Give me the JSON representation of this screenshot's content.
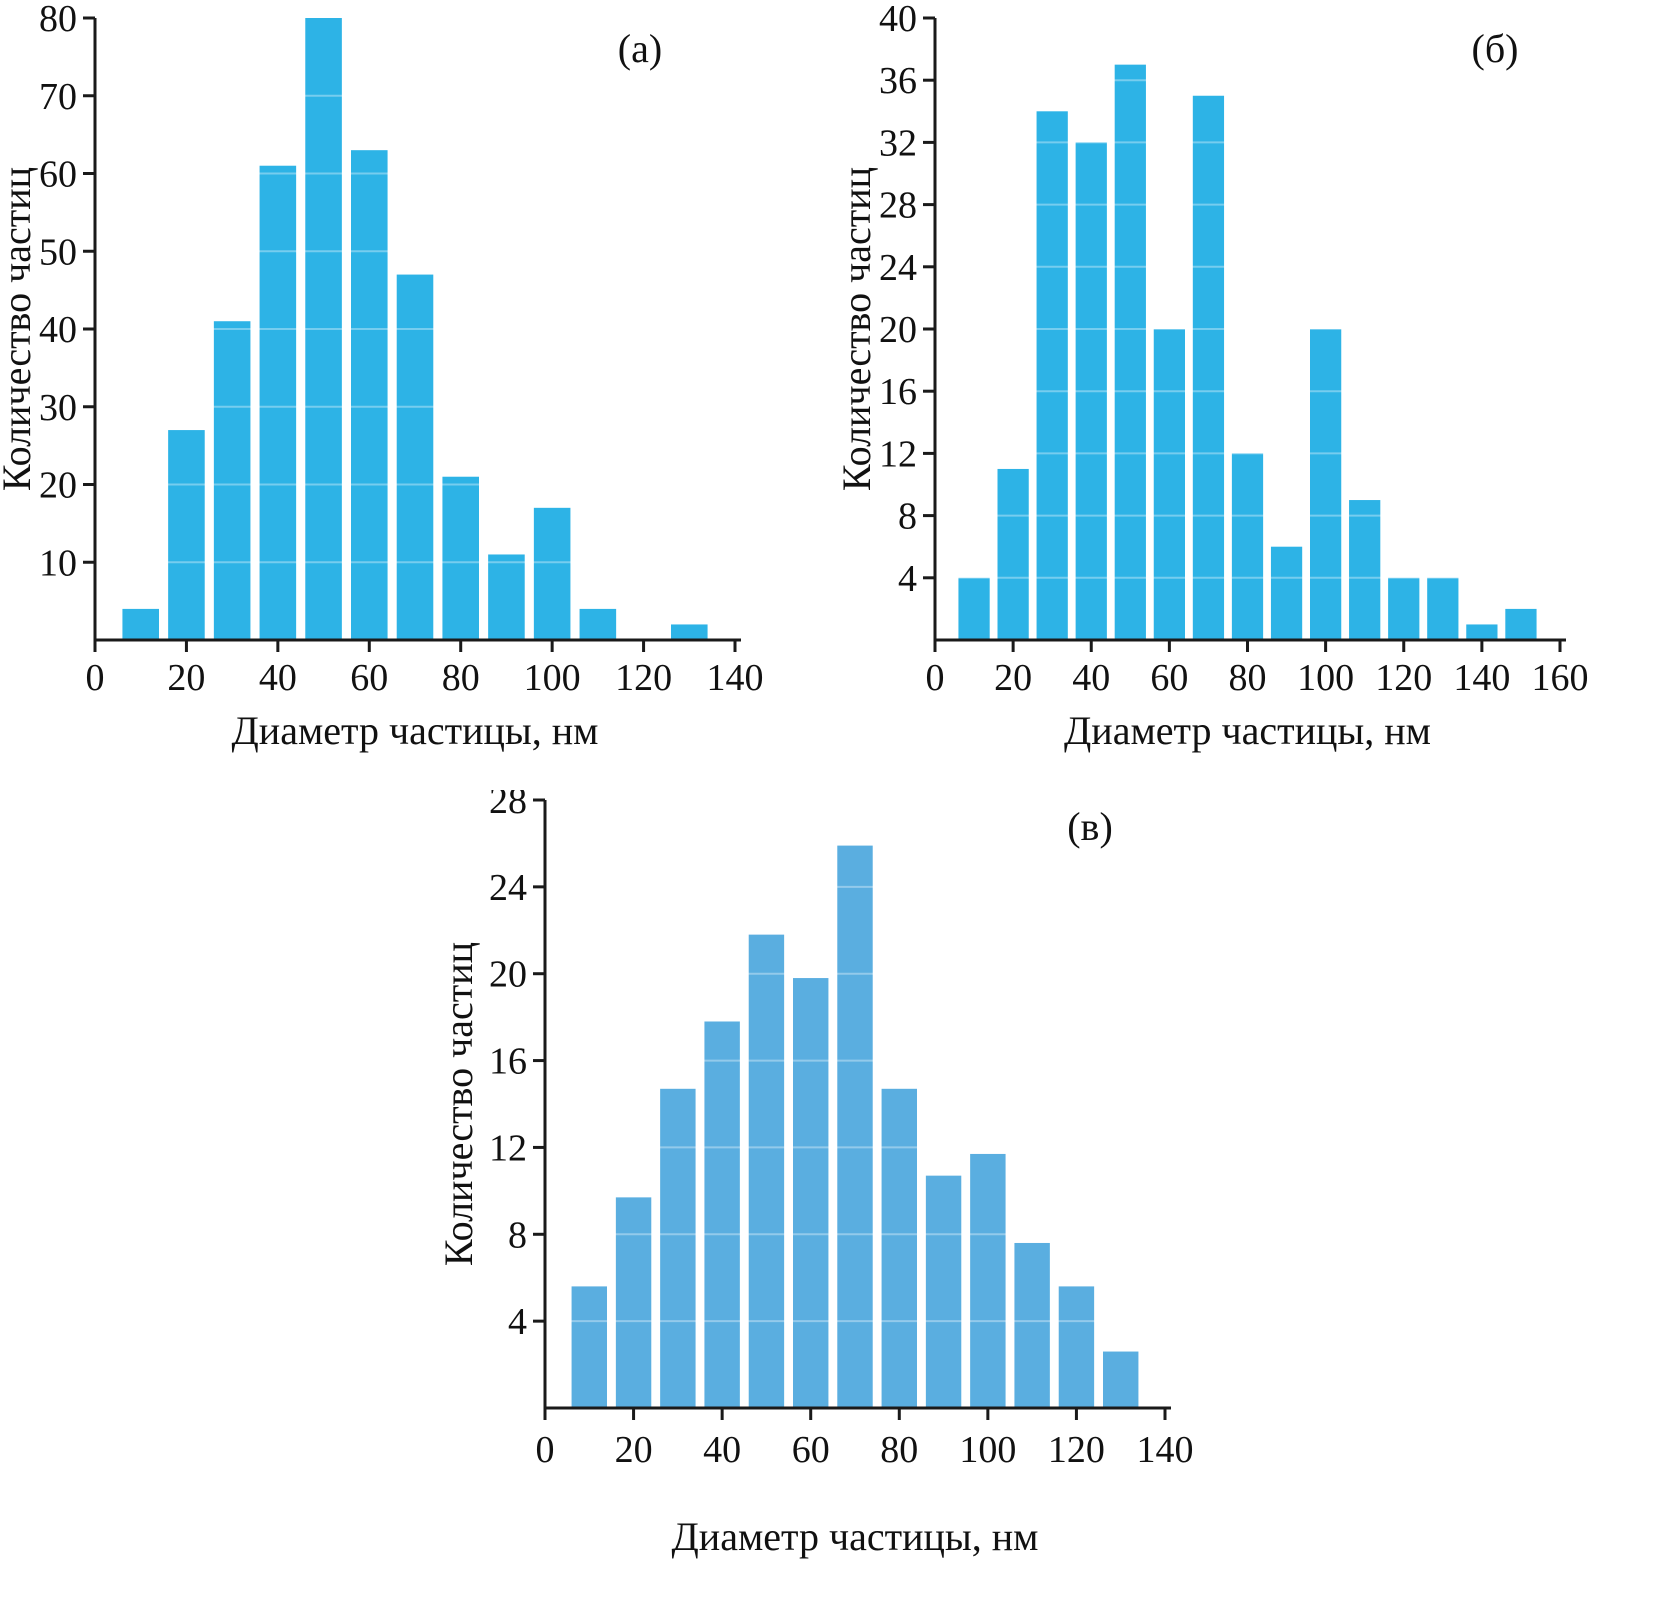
{
  "page": {
    "background": "#ffffff",
    "description_labels": {
      "xlabel": "Диаметр частицы, нм",
      "ylabel": "Количество частиц"
    }
  },
  "chart_data": [
    {
      "id": "panel-a",
      "type": "bar",
      "panel_label": "(а)",
      "title": "",
      "xlabel": "Диаметр частицы, нм",
      "ylabel": "Количество частиц",
      "x": [
        10,
        20,
        30,
        40,
        50,
        60,
        70,
        80,
        90,
        100,
        110,
        120,
        130
      ],
      "values": [
        4,
        27,
        41,
        61,
        80,
        63,
        47,
        21,
        11,
        17,
        4,
        0,
        2
      ],
      "bin_width": 10,
      "xlim": [
        0,
        140
      ],
      "xtick_step": 20,
      "ylim": [
        0,
        80
      ],
      "ytick_step": 10,
      "grid": true,
      "legend": "none",
      "bar_color": "#2db3e6",
      "grid_color": "rgba(255,255,255,0.35)",
      "axis_color": "#1a1a1a"
    },
    {
      "id": "panel-b",
      "type": "bar",
      "panel_label": "(б)",
      "title": "",
      "xlabel": "Диаметр частицы, нм",
      "ylabel": "Количество частиц",
      "x": [
        10,
        20,
        30,
        40,
        50,
        60,
        70,
        80,
        90,
        100,
        110,
        120,
        130,
        140,
        150
      ],
      "values": [
        4,
        11,
        34,
        32,
        37,
        20,
        35,
        12,
        6,
        20,
        9,
        4,
        4,
        1,
        2
      ],
      "bin_width": 10,
      "xlim": [
        0,
        160
      ],
      "xtick_step": 20,
      "ylim": [
        0,
        40
      ],
      "ytick_step": 4,
      "grid": true,
      "legend": "none",
      "bar_color": "#2db3e6",
      "grid_color": "rgba(255,255,255,0.35)",
      "axis_color": "#1a1a1a"
    },
    {
      "id": "panel-v",
      "type": "bar",
      "panel_label": "(в)",
      "title": "",
      "xlabel": "Диаметр частицы, нм",
      "ylabel": "Количество частиц",
      "x": [
        10,
        20,
        30,
        40,
        50,
        60,
        70,
        80,
        90,
        100,
        110,
        120,
        130
      ],
      "values": [
        5.6,
        9.7,
        14.7,
        17.8,
        21.8,
        19.8,
        25.9,
        14.7,
        10.7,
        11.7,
        7.6,
        5.6,
        2.6
      ],
      "bin_width": 10,
      "xlim": [
        0,
        140
      ],
      "xtick_step": 20,
      "ylim": [
        0,
        28
      ],
      "ytick_step": 4,
      "grid": true,
      "legend": "none",
      "bar_color": "#5aaee0",
      "grid_color": "rgba(255,255,255,0.35)",
      "axis_color": "#1a1a1a"
    }
  ]
}
